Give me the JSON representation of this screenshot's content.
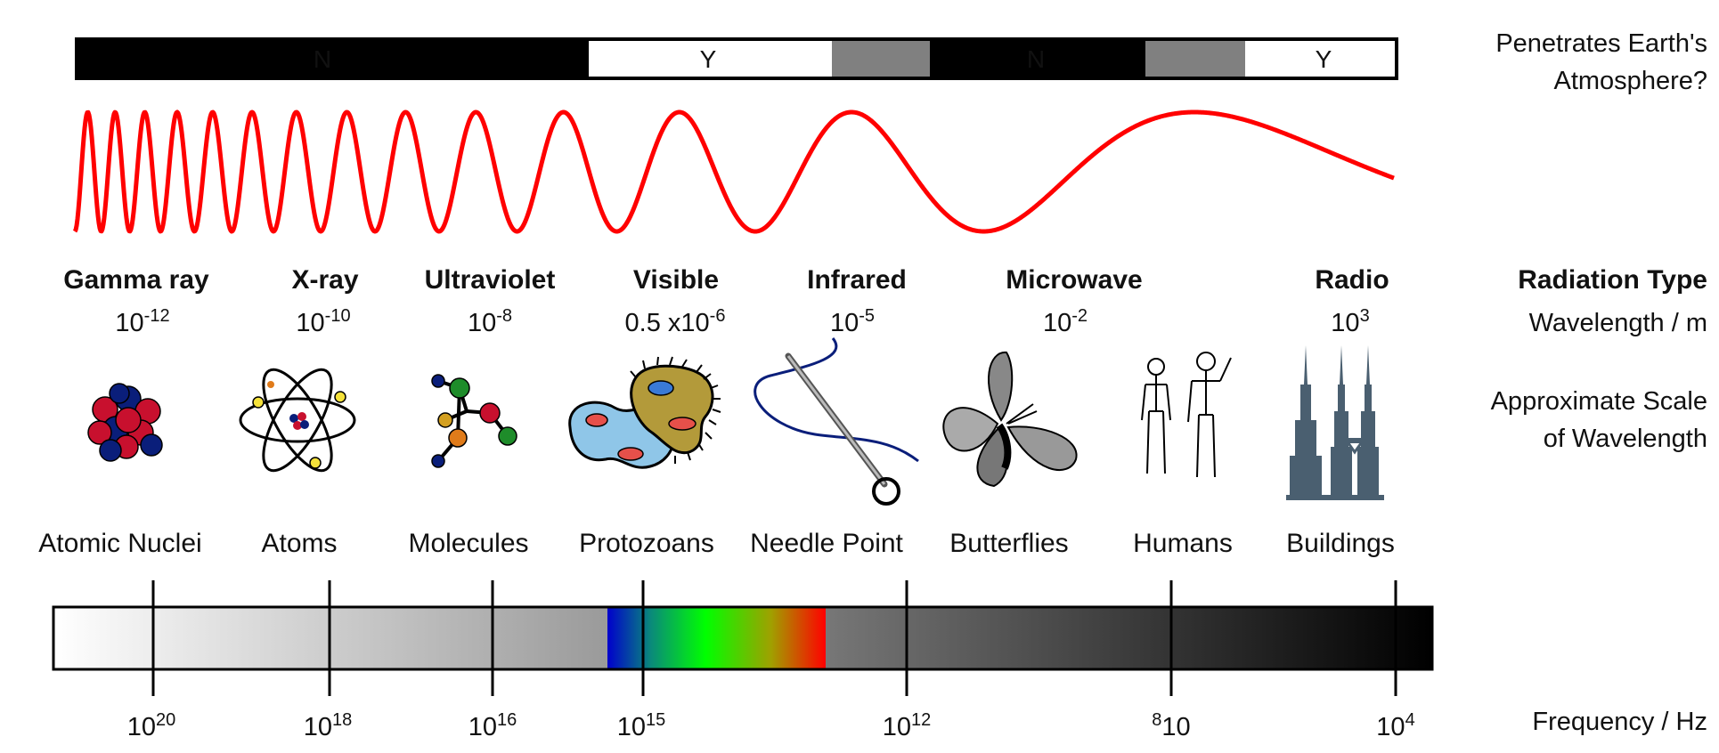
{
  "atmosphere": {
    "label_line1": "Penetrates Earth's",
    "label_line2": "Atmosphere?",
    "segments": [
      {
        "text": "N",
        "fill": "#000000",
        "text_color": "#ffffff"
      },
      {
        "text": "Y",
        "fill": "#ffffff",
        "text_color": "#000000"
      },
      {
        "text": "",
        "fill": "#808080",
        "text_color": "#000000"
      },
      {
        "text": "N",
        "fill": "#000000",
        "text_color": "#ffffff"
      },
      {
        "text": "",
        "fill": "#808080",
        "text_color": "#000000"
      },
      {
        "text": "Y",
        "fill": "#ffffff",
        "text_color": "#000000"
      }
    ]
  },
  "wave": {
    "color": "#ff0000"
  },
  "radiation": {
    "row_label": "Radiation Type",
    "wavelength_label": "Wavelength / m",
    "types": [
      {
        "name": "Gamma ray",
        "wl_base": "10",
        "wl_exp": "-12"
      },
      {
        "name": "X-ray",
        "wl_base": "10",
        "wl_exp": "-10"
      },
      {
        "name": "Ultraviolet",
        "wl_base": "10",
        "wl_exp": "-8"
      },
      {
        "name": "Visible",
        "wl_base": "0.5 x10",
        "wl_exp": "-6"
      },
      {
        "name": "Infrared",
        "wl_base": "10",
        "wl_exp": "-5"
      },
      {
        "name": "Microwave",
        "wl_base": "10",
        "wl_exp": "-2"
      },
      {
        "name": "Radio",
        "wl_base": "10",
        "wl_exp": "3"
      }
    ]
  },
  "scale": {
    "label_line1": "Approximate Scale",
    "label_line2": "of Wavelength",
    "items": [
      {
        "label": "Atomic Nuclei",
        "icon": "atomic-nucleus-icon"
      },
      {
        "label": "Atoms",
        "icon": "atom-icon"
      },
      {
        "label": "Molecules",
        "icon": "molecule-icon"
      },
      {
        "label": "Protozoans",
        "icon": "protozoan-icon"
      },
      {
        "label": "Needle Point",
        "icon": "needle-icon"
      },
      {
        "label": "Butterflies",
        "icon": "butterfly-icon"
      },
      {
        "label": "Humans",
        "icon": "humans-icon"
      },
      {
        "label": "Buildings",
        "icon": "buildings-icon"
      }
    ]
  },
  "frequency": {
    "axis_label": "Frequency / Hz",
    "ticks": [
      {
        "pre": "",
        "base": "10",
        "exp": "20",
        "post": ""
      },
      {
        "pre": "",
        "base": "10",
        "exp": "18",
        "post": ""
      },
      {
        "pre": "",
        "base": "10",
        "exp": "16",
        "post": ""
      },
      {
        "pre": "",
        "base": "10",
        "exp": "15",
        "post": ""
      },
      {
        "pre": "",
        "base": "10",
        "exp": "12",
        "post": ""
      },
      {
        "pre": "8",
        "base": "10",
        "exp": "",
        "post": ""
      },
      {
        "pre": "",
        "base": "10",
        "exp": "4",
        "post": ""
      }
    ]
  },
  "colors": {
    "visible_spectrum": [
      "#0000cc",
      "#0a8a7a",
      "#00ff00",
      "#a0a000",
      "#ff0000"
    ],
    "building": "#4a5f70"
  }
}
